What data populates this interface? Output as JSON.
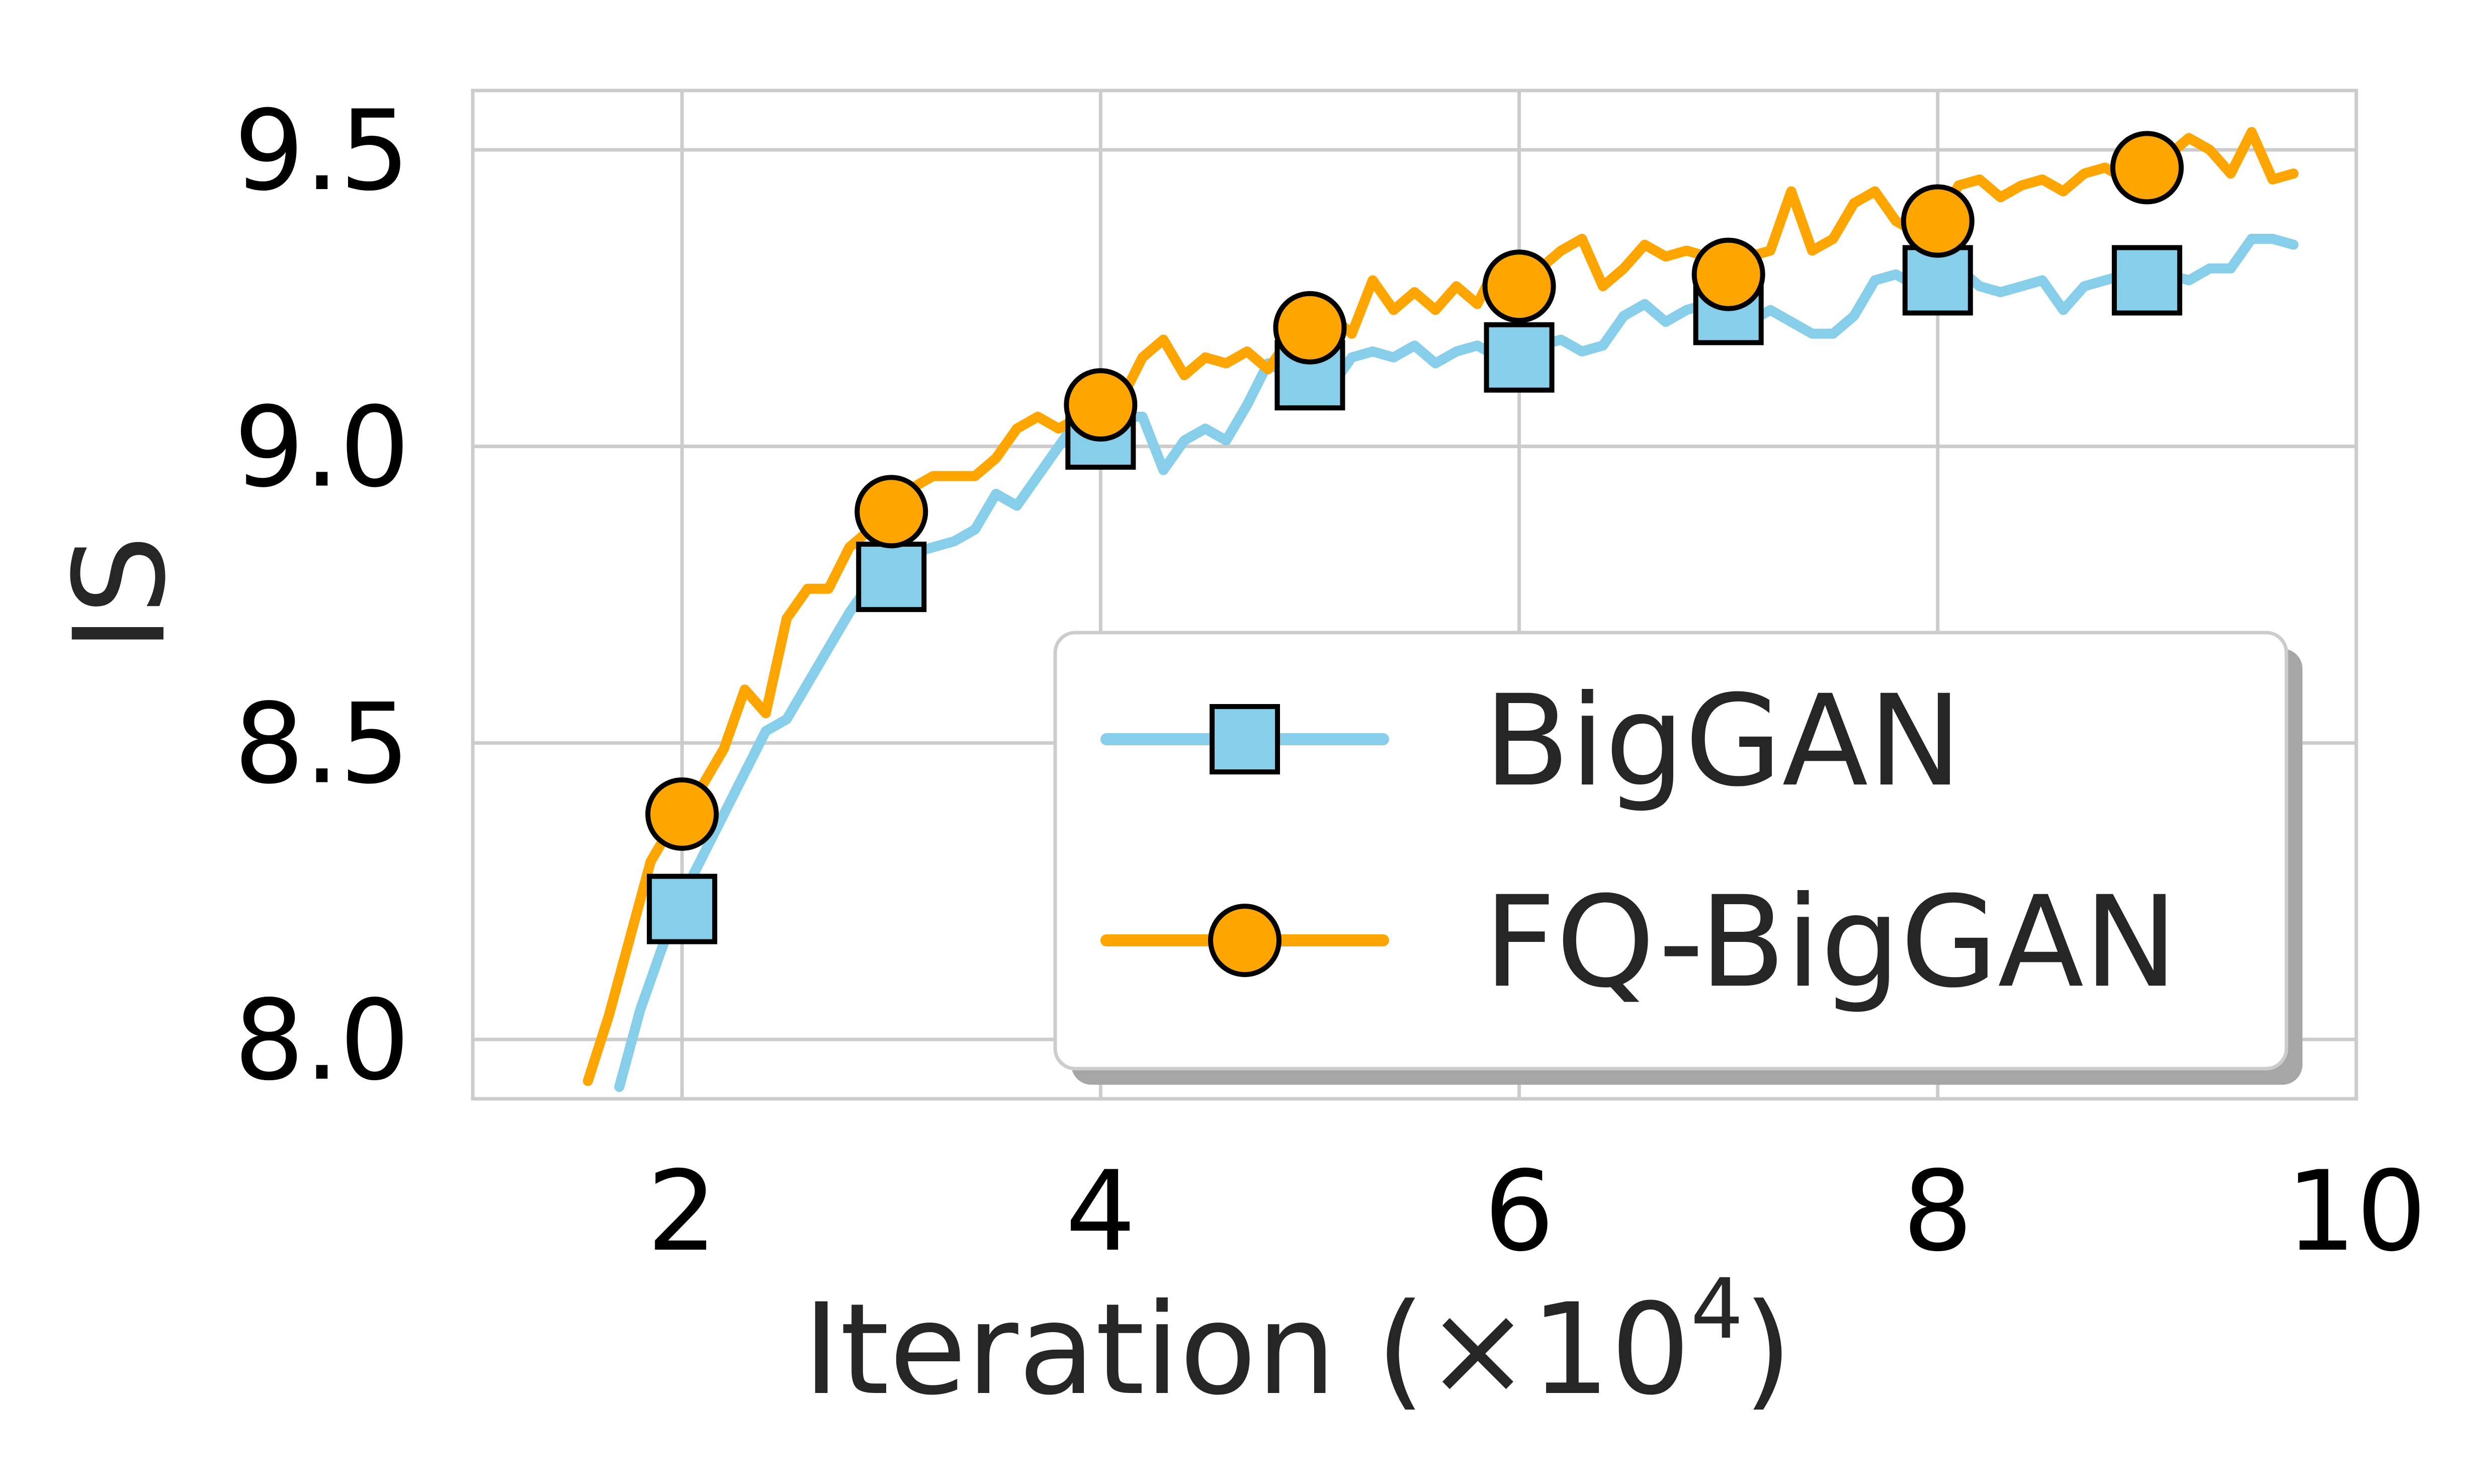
{
  "chart_data": {
    "type": "line",
    "title": "",
    "xlabel": "Iteration (×10",
    "xlabel_sup": "4",
    "xlabel_close": ")",
    "ylabel": "IS",
    "xlim": [
      1,
      10
    ],
    "ylim": [
      7.9,
      9.6
    ],
    "xticks": [
      2,
      4,
      6,
      8,
      10
    ],
    "xtick_labels": [
      "2",
      "4",
      "6",
      "8",
      "10"
    ],
    "yticks": [
      8.0,
      8.5,
      9.0,
      9.5
    ],
    "ytick_labels": [
      "8.0",
      "8.5",
      "9.0",
      "9.5"
    ],
    "grid": true,
    "legend_position": "lower-right",
    "series": [
      {
        "name": "BigGAN",
        "color": "#87CEEB",
        "marker": "square",
        "marker_x": [
          2,
          3,
          4,
          5,
          6,
          7,
          8,
          9
        ],
        "marker_y": [
          8.22,
          8.78,
          9.02,
          9.12,
          9.15,
          9.23,
          9.28,
          9.28
        ],
        "x": [
          1.7,
          1.8,
          1.9,
          2.0,
          2.1,
          2.2,
          2.3,
          2.4,
          2.5,
          2.6,
          2.7,
          2.8,
          2.9,
          3.0,
          3.1,
          3.2,
          3.3,
          3.4,
          3.5,
          3.6,
          3.7,
          3.8,
          3.9,
          4.0,
          4.1,
          4.2,
          4.3,
          4.4,
          4.5,
          4.6,
          4.7,
          4.8,
          4.9,
          5.0,
          5.1,
          5.2,
          5.3,
          5.4,
          5.5,
          5.6,
          5.7,
          5.8,
          5.9,
          6.0,
          6.1,
          6.2,
          6.3,
          6.4,
          6.5,
          6.6,
          6.7,
          6.8,
          6.9,
          7.0,
          7.1,
          7.2,
          7.3,
          7.4,
          7.5,
          7.6,
          7.7,
          7.8,
          7.9,
          8.0,
          8.1,
          8.2,
          8.3,
          8.4,
          8.5,
          8.6,
          8.7,
          8.8,
          8.9,
          9.0,
          9.1,
          9.2,
          9.3,
          9.4,
          9.5,
          9.6,
          9.7
        ],
        "y": [
          7.92,
          8.05,
          8.15,
          8.24,
          8.31,
          8.38,
          8.45,
          8.52,
          8.54,
          8.6,
          8.66,
          8.72,
          8.77,
          8.8,
          8.82,
          8.83,
          8.84,
          8.86,
          8.92,
          8.9,
          8.95,
          9.0,
          9.05,
          9.04,
          9.05,
          9.05,
          8.96,
          9.01,
          9.03,
          9.01,
          9.07,
          9.14,
          9.12,
          9.11,
          9.1,
          9.15,
          9.16,
          9.15,
          9.17,
          9.14,
          9.16,
          9.17,
          9.15,
          9.16,
          9.17,
          9.18,
          9.16,
          9.17,
          9.22,
          9.24,
          9.21,
          9.23,
          9.24,
          9.22,
          9.21,
          9.23,
          9.21,
          9.19,
          9.19,
          9.22,
          9.28,
          9.29,
          9.27,
          9.28,
          9.3,
          9.27,
          9.26,
          9.27,
          9.28,
          9.23,
          9.27,
          9.28,
          9.29,
          9.28,
          9.29,
          9.28,
          9.3,
          9.3,
          9.35,
          9.35,
          9.34
        ]
      },
      {
        "name": "FQ-BigGAN",
        "color": "#FFA500",
        "marker": "circle",
        "marker_x": [
          2,
          3,
          4,
          5,
          6,
          7,
          8,
          9
        ],
        "marker_y": [
          8.38,
          8.89,
          9.07,
          9.2,
          9.27,
          9.29,
          9.38,
          9.47
        ],
        "x": [
          1.55,
          1.65,
          1.75,
          1.85,
          1.95,
          2.0,
          2.1,
          2.2,
          2.3,
          2.4,
          2.5,
          2.6,
          2.7,
          2.8,
          2.9,
          3.0,
          3.1,
          3.2,
          3.3,
          3.4,
          3.5,
          3.6,
          3.7,
          3.8,
          3.9,
          4.0,
          4.1,
          4.2,
          4.3,
          4.4,
          4.5,
          4.6,
          4.7,
          4.8,
          4.9,
          5.0,
          5.1,
          5.2,
          5.3,
          5.4,
          5.5,
          5.6,
          5.7,
          5.8,
          5.9,
          6.0,
          6.1,
          6.2,
          6.3,
          6.4,
          6.5,
          6.6,
          6.7,
          6.8,
          6.9,
          7.0,
          7.1,
          7.2,
          7.3,
          7.4,
          7.5,
          7.6,
          7.7,
          7.8,
          7.9,
          8.0,
          8.1,
          8.2,
          8.3,
          8.4,
          8.5,
          8.6,
          8.7,
          8.8,
          8.9,
          9.0,
          9.1,
          9.2,
          9.3,
          9.4,
          9.5,
          9.6,
          9.7
        ],
        "y": [
          7.93,
          8.04,
          8.17,
          8.3,
          8.36,
          8.38,
          8.43,
          8.49,
          8.59,
          8.55,
          8.71,
          8.76,
          8.76,
          8.83,
          8.86,
          8.89,
          8.93,
          8.95,
          8.95,
          8.95,
          8.98,
          9.03,
          9.05,
          9.03,
          9.05,
          9.07,
          9.08,
          9.15,
          9.18,
          9.12,
          9.15,
          9.14,
          9.16,
          9.13,
          9.18,
          9.2,
          9.22,
          9.19,
          9.28,
          9.23,
          9.26,
          9.23,
          9.27,
          9.24,
          9.31,
          9.27,
          9.3,
          9.33,
          9.35,
          9.27,
          9.3,
          9.34,
          9.32,
          9.33,
          9.32,
          9.29,
          9.32,
          9.33,
          9.43,
          9.33,
          9.35,
          9.41,
          9.43,
          9.38,
          9.36,
          9.38,
          9.44,
          9.45,
          9.42,
          9.44,
          9.45,
          9.43,
          9.46,
          9.47,
          9.45,
          9.47,
          9.49,
          9.52,
          9.5,
          9.46,
          9.53,
          9.45,
          9.46
        ]
      }
    ]
  }
}
